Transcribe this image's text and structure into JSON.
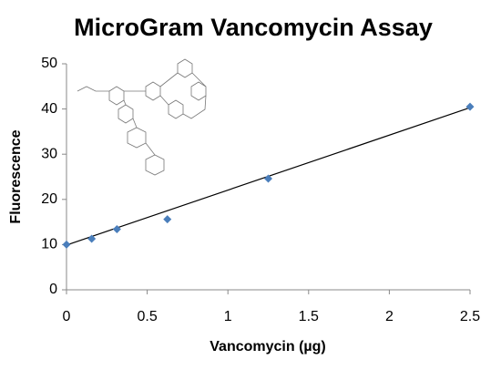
{
  "chart_data": {
    "type": "scatter",
    "title": "MicroGram Vancomycin Assay",
    "x_label": "Vancomycin (µg)",
    "y_label": "Fluorescence",
    "series": [
      {
        "color": "#4a7ebb",
        "x": [
          0,
          0.156,
          0.3125,
          0.625,
          1.25,
          2.5
        ],
        "values": [
          10,
          11.3,
          13.4,
          15.6,
          24.6,
          40.5
        ]
      }
    ],
    "trendline": {
      "color": "#000000",
      "x": [
        0,
        2.5
      ],
      "values": [
        9.9,
        40.3
      ]
    },
    "xlim": [
      0,
      2.5
    ],
    "xticks": [
      0,
      0.5,
      1,
      1.5,
      2,
      2.5
    ],
    "ylim": [
      0,
      50
    ],
    "yticks": [
      0,
      10,
      20,
      30,
      40,
      50
    ],
    "grid": false
  }
}
